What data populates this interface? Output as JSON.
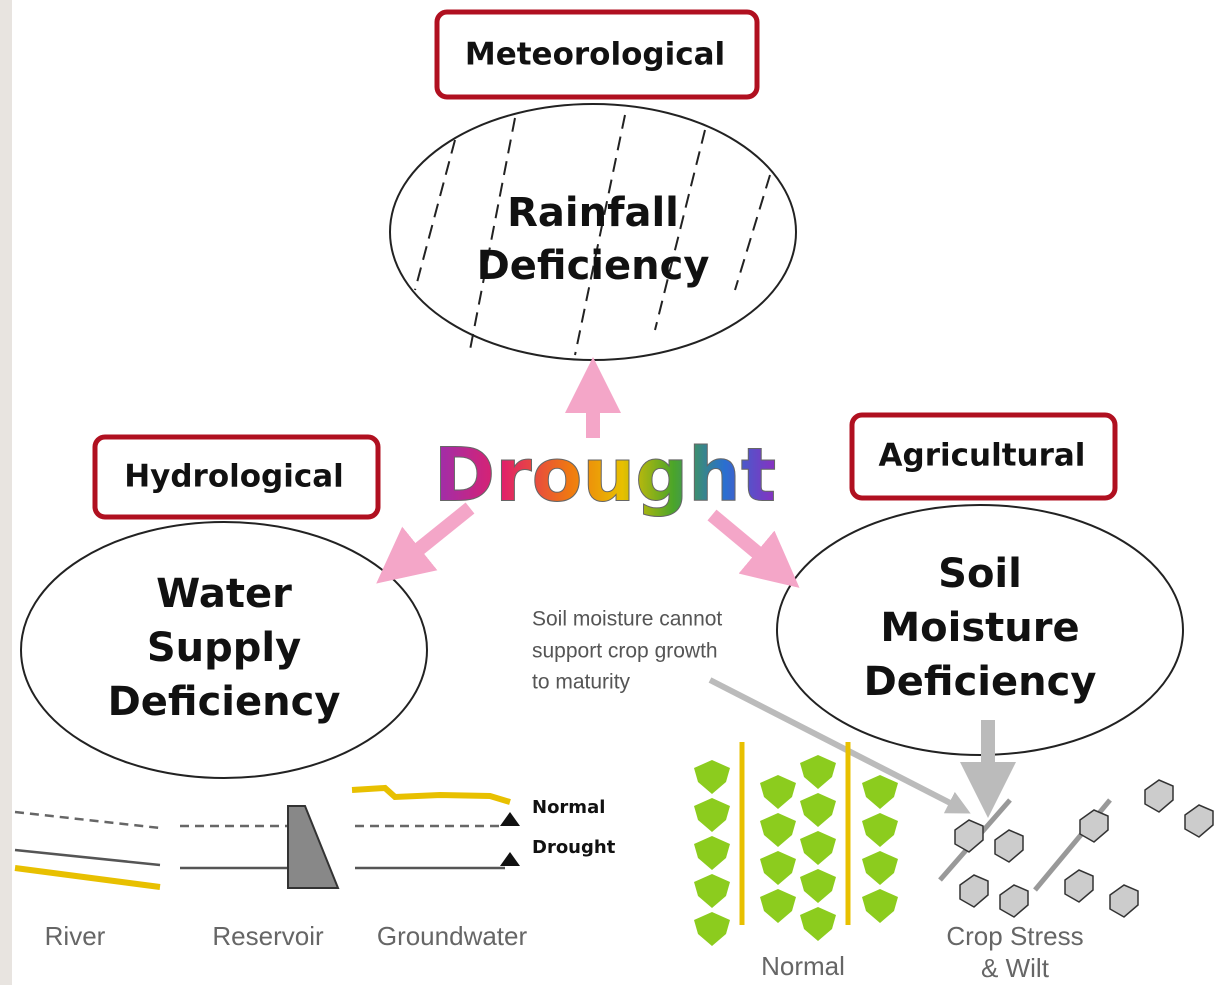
{
  "center": {
    "label": "Drought"
  },
  "categories": [
    {
      "label": "Meteorological",
      "deficiency": [
        "Rainfall",
        "Deficiency"
      ]
    },
    {
      "label": "Hydrological",
      "deficiency": [
        "Water",
        "Supply",
        "Deficiency"
      ]
    },
    {
      "label": "Agricultural",
      "deficiency": [
        "Soil",
        "Moisture",
        "Deficiency"
      ]
    }
  ],
  "hydrological_panel": {
    "levels": [
      "Normal",
      "Drought"
    ],
    "captions": [
      "River",
      "Reservoir",
      "Groundwater"
    ]
  },
  "agricultural_panel": {
    "note": [
      "Soil moisture cannot",
      "support crop growth",
      "to maturity"
    ],
    "captions": [
      [
        "Normal"
      ],
      [
        "Crop Stress",
        "& Wilt"
      ]
    ]
  }
}
